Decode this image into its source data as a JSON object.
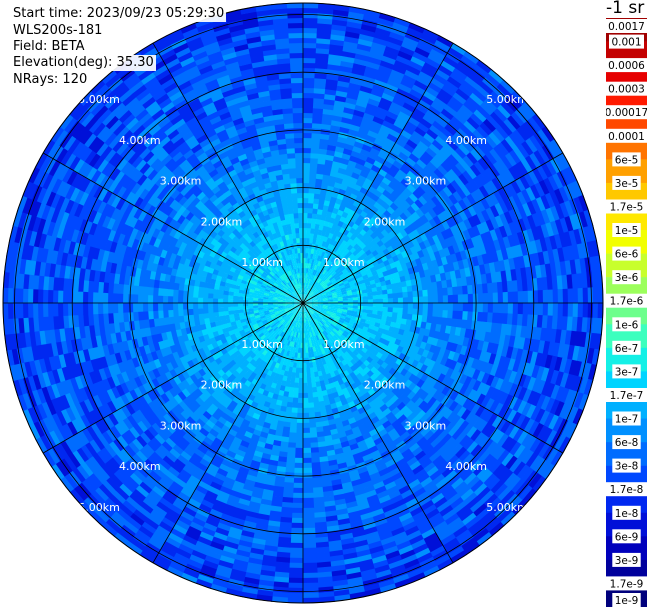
{
  "header": {
    "start_time": "Start time: 2023/09/23 05:29:30",
    "instrument": "WLS200s-181",
    "field": "Field: BETA",
    "elevation": "Elevation(deg): 35.30",
    "nrays": "NRays: 120"
  },
  "colorbar": {
    "units": "-1 sr",
    "ticks": [
      "0.0017",
      "0.001",
      "0.0006",
      "0.0003",
      "0.00017",
      "0.0001",
      "6e-5",
      "3e-5",
      "1.7e-5",
      "1e-5",
      "6e-6",
      "3e-6",
      "1.7e-6",
      "1e-6",
      "6e-7",
      "3e-7",
      "1.7e-7",
      "1e-7",
      "6e-8",
      "3e-8",
      "1.7e-8",
      "1e-8",
      "6e-9",
      "3e-9",
      "1.7e-9",
      "1e-9"
    ],
    "colors": [
      "#a00000",
      "#c40000",
      "#e60000",
      "#ff1a00",
      "#ff4800",
      "#ff7400",
      "#ffa000",
      "#ffc800",
      "#ffe800",
      "#f2ff00",
      "#c8ff2c",
      "#9cff5c",
      "#6cff8c",
      "#3cffbe",
      "#14f0e6",
      "#00d4ff",
      "#00b0ff",
      "#0090ff",
      "#006cff",
      "#0048ff",
      "#0028f0",
      "#0010d8",
      "#0000bc",
      "#00009c",
      "#00007c"
    ]
  },
  "range_labels": [
    "1.00km",
    "2.00km",
    "3.00km",
    "4.00km",
    "5.00km"
  ],
  "chart_data": {
    "type": "heatmap",
    "projection": "polar",
    "field": "BETA",
    "units": "-1 sr",
    "elevation_deg": 35.3,
    "n_rays": 120,
    "range_rings_km": [
      1,
      2,
      3,
      4,
      5
    ],
    "max_range_km": 5.2,
    "azimuth_spokes_deg": [
      0,
      30,
      60,
      90,
      120,
      150,
      180,
      210,
      240,
      270,
      300,
      330
    ],
    "color_scale": "log",
    "color_range": [
      1e-09,
      0.0017
    ],
    "value_profile": {
      "range_km": [
        0.1,
        0.5,
        1.0,
        1.5,
        2.0,
        2.5,
        3.0,
        3.5,
        4.0,
        4.5,
        5.0
      ],
      "typical_beta": [
        3e-07,
        2.5e-07,
        2e-07,
        1.5e-07,
        1e-07,
        6e-08,
        4.5e-08,
        3.5e-08,
        3e-08,
        2.5e-08,
        2e-08
      ]
    }
  }
}
